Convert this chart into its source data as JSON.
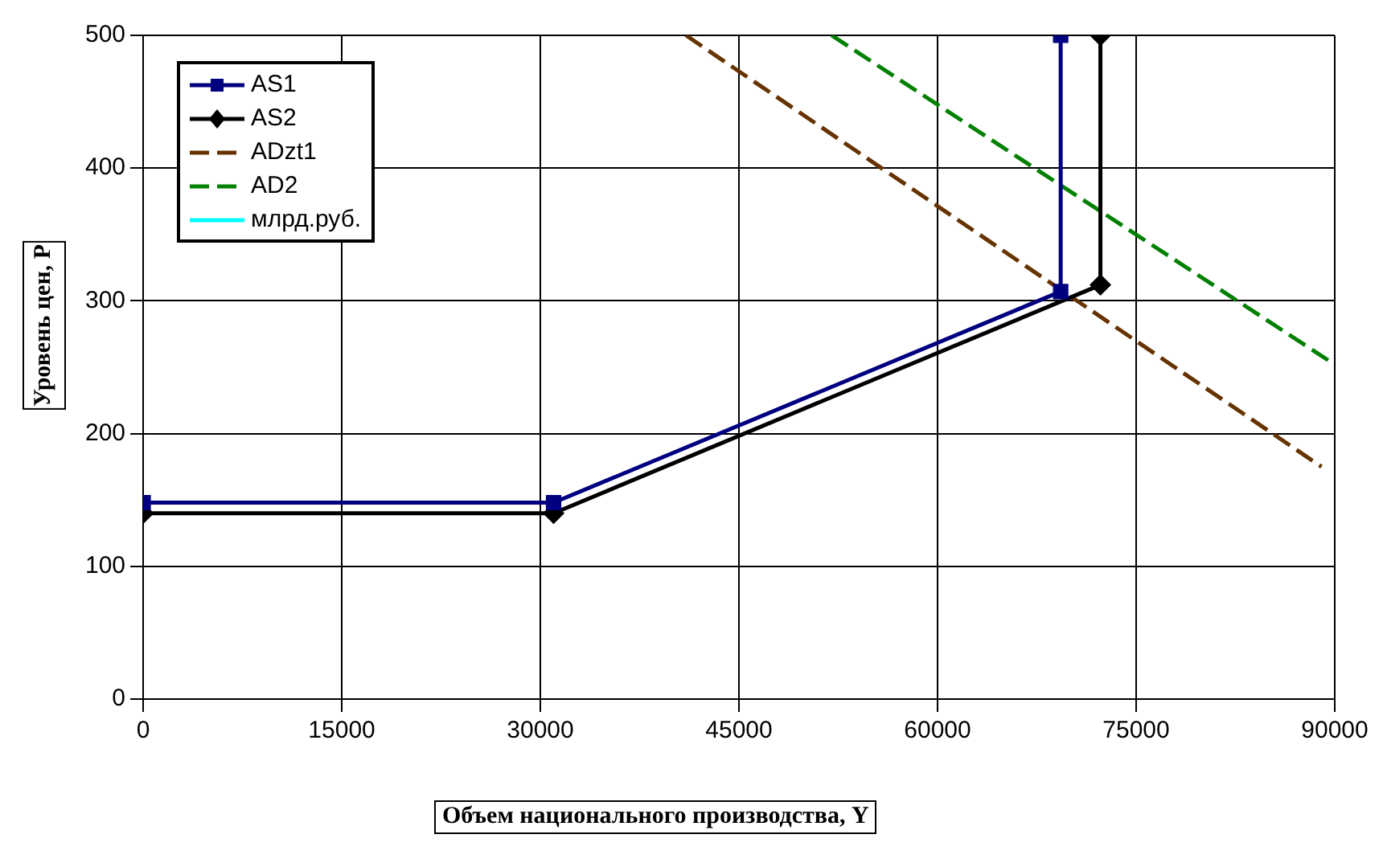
{
  "chart_data": {
    "type": "line",
    "xlabel": "Объем национального производства, Y",
    "ylabel": "Уровень цен, P",
    "xlim": [
      0,
      90000
    ],
    "xticks": [
      0,
      15000,
      30000,
      45000,
      60000,
      75000,
      90000
    ],
    "ylim": [
      0,
      500
    ],
    "yticks": [
      0,
      100,
      200,
      300,
      400,
      500
    ],
    "grid": true,
    "legend": "top left",
    "series": [
      {
        "name": "AS1",
        "color": "#000080",
        "marker": "square",
        "line_style": "solid",
        "x": [
          0,
          31000,
          69300,
          69300
        ],
        "values": [
          148,
          148,
          307,
          500
        ]
      },
      {
        "name": "AS2",
        "color": "#000000",
        "marker": "diamond",
        "line_style": "solid",
        "x": [
          0,
          31000,
          72300,
          72300
        ],
        "values": [
          140,
          140,
          312,
          500
        ]
      },
      {
        "name": "ADzt1",
        "color": "#663300",
        "marker": "none",
        "line_style": "dashed",
        "x": [
          41000,
          89000
        ],
        "values": [
          500,
          175
        ]
      },
      {
        "name": "AD2",
        "color": "#008000",
        "marker": "none",
        "line_style": "dashed",
        "x": [
          52000,
          90000
        ],
        "values": [
          500,
          252
        ]
      },
      {
        "name": "млрд.руб.",
        "color": "#00ffff",
        "marker": "none",
        "line_style": "solid"
      }
    ]
  }
}
